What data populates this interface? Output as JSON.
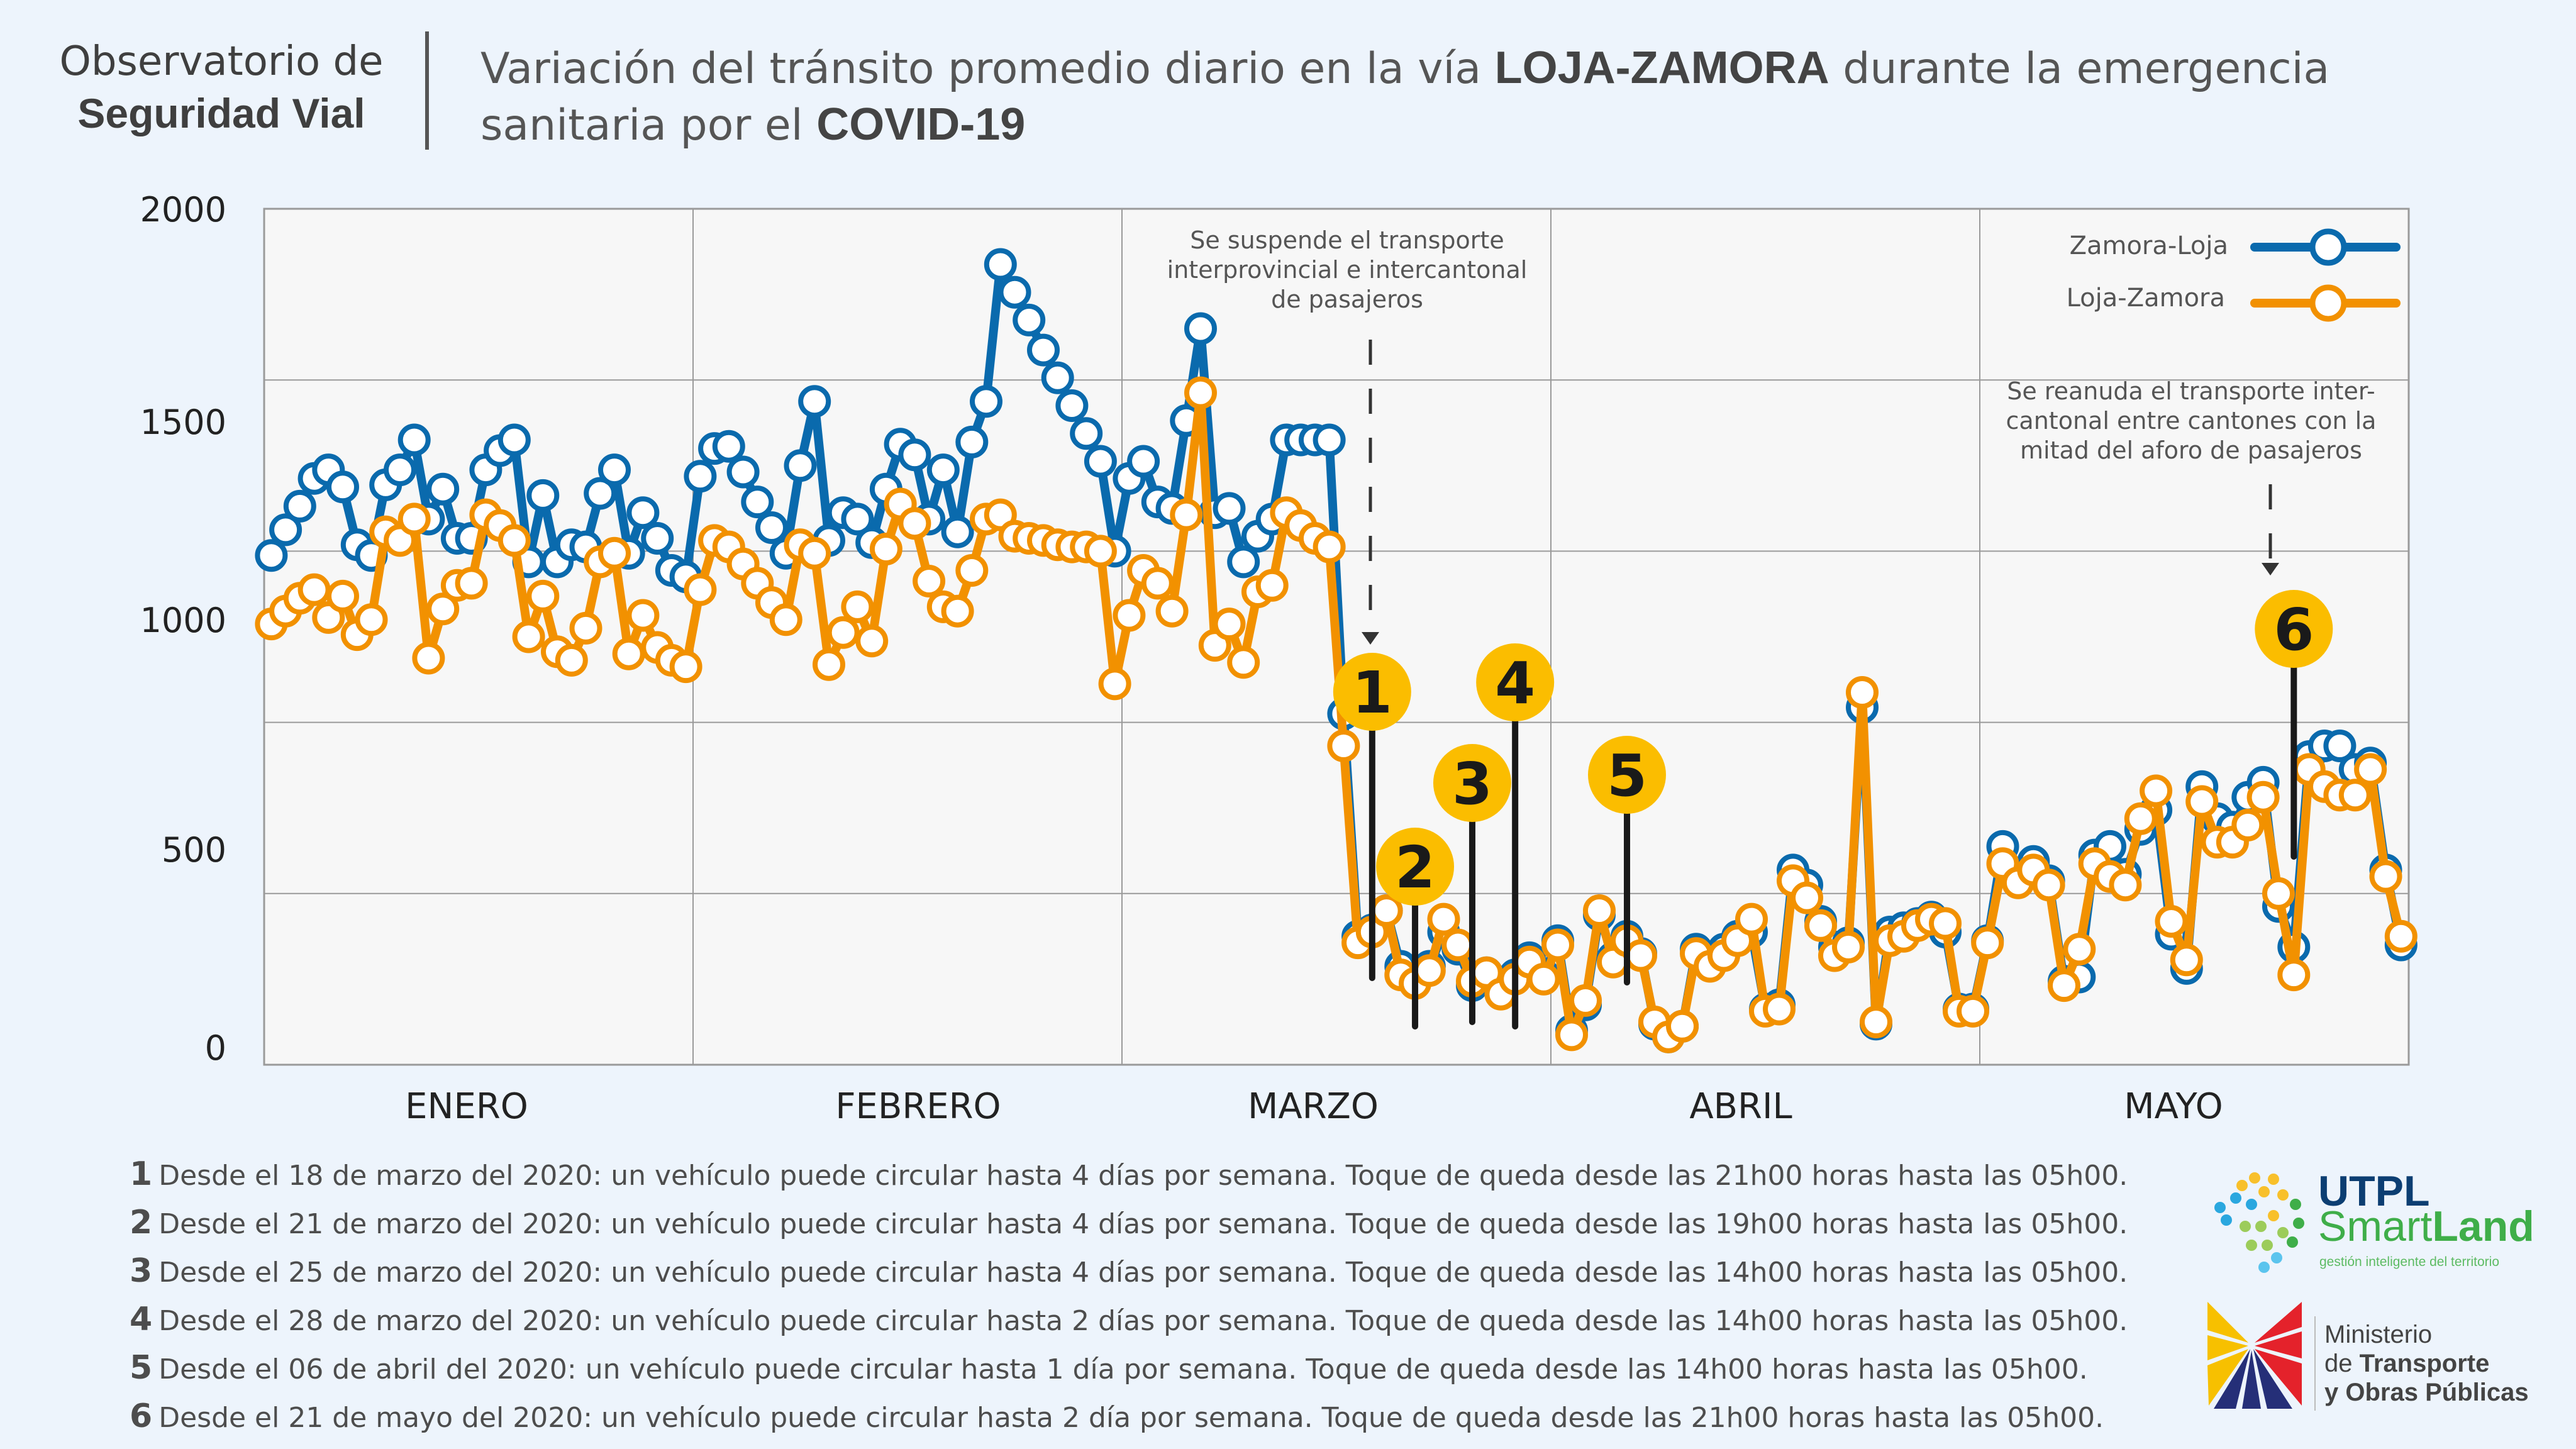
{
  "header": {
    "org_line1": "Observatorio de",
    "org_line2": "Seguridad Vial",
    "title_part1": "Variación del tránsito promedio diario en la vía ",
    "title_bold1": "LOJA-ZAMORA",
    "title_part2": " durante la emergencia sanitaria por el ",
    "title_bold2": "COVID-19"
  },
  "colors": {
    "zamora_loja": "#0a6aad",
    "loja_zamora": "#f29100",
    "badge": "#fbbd00",
    "background": "#edf4fc",
    "plot_bg": "#f7f7f7"
  },
  "annotations": {
    "suspension": [
      "Se suspende el transporte",
      "interprovincial e intercantonal",
      "de pasajeros"
    ],
    "resumption": [
      "Se reanuda el transporte inter-",
      "cantonal entre cantones con la",
      "mitad del aforo de pasajeros"
    ]
  },
  "chart_data": {
    "type": "line",
    "title": "Variación del tránsito promedio diario en la vía LOJA-ZAMORA durante la emergencia sanitaria por el COVID-19",
    "xlabel": "",
    "ylabel": "",
    "ylim": [
      0,
      2000
    ],
    "yticks": [
      "2000",
      "1500",
      "1000",
      "500",
      "0"
    ],
    "months": [
      "ENERO",
      "FEBRERO",
      "MARZO",
      "ABRIL",
      "MAYO"
    ],
    "grid": true,
    "legend_position": "top-right",
    "legend": [
      "Zamora-Loja",
      "Loja-Zamora"
    ],
    "series": [
      {
        "name": "Zamora-Loja",
        "values": {
          "ENERO": [
            1190,
            1250,
            1305,
            1370,
            1390,
            1350,
            1215,
            1190,
            1355,
            1390,
            1460,
            1275,
            1345,
            1230,
            1230,
            1390,
            1435,
            1460,
            1175,
            1330,
            1175,
            1215,
            1210,
            1335,
            1390,
            1195,
            1290,
            1230,
            1155,
            1140
          ],
          "FEBRERO": [
            1375,
            1440,
            1445,
            1385,
            1315,
            1255,
            1195,
            1400,
            1550,
            1225,
            1290,
            1275,
            1220,
            1345,
            1450,
            1425,
            1275,
            1390,
            1245,
            1455,
            1550,
            1870,
            1805,
            1740,
            1670,
            1605,
            1540,
            1475,
            1410,
            1200
          ],
          "MARZO": [
            1370,
            1410,
            1315,
            1300,
            1505,
            1720,
            1290,
            1300,
            1175,
            1235,
            1275,
            1460,
            1460,
            1460,
            1460,
            820,
            300,
            315,
            360,
            230,
            200,
            230,
            310,
            270,
            185,
            215,
            170,
            210,
            250,
            210
          ],
          "ABRIL": [
            290,
            80,
            140,
            350,
            250,
            300,
            260,
            95,
            65,
            90,
            270,
            245,
            270,
            300,
            310,
            130,
            140,
            455,
            420,
            335,
            275,
            285,
            835,
            95,
            310,
            320,
            330,
            345,
            310,
            130,
            130
          ],
          "MAYO": [
            290,
            510,
            445,
            475,
            430,
            195,
            205,
            490,
            510,
            445,
            550,
            595,
            305,
            225,
            650,
            575,
            555,
            625,
            660,
            370,
            275,
            720,
            745,
            745,
            690,
            705,
            455,
            280
          ]
        }
      },
      {
        "name": "Loja-Zamora",
        "values": {
          "ENERO": [
            1030,
            1060,
            1090,
            1110,
            1045,
            1095,
            1005,
            1040,
            1245,
            1225,
            1275,
            950,
            1065,
            1120,
            1125,
            1285,
            1260,
            1225,
            1000,
            1095,
            965,
            945,
            1020,
            1175,
            1195,
            960,
            1050,
            975,
            945,
            930
          ],
          "FEBRERO": [
            1110,
            1225,
            1210,
            1170,
            1125,
            1080,
            1040,
            1215,
            1195,
            935,
            1010,
            1070,
            990,
            1205,
            1310,
            1265,
            1130,
            1070,
            1060,
            1155,
            1275,
            1285,
            1235,
            1230,
            1225,
            1215,
            1210,
            1210,
            1200,
            890
          ],
          "MARZO": [
            1050,
            1155,
            1125,
            1060,
            1285,
            1570,
            980,
            1030,
            940,
            1105,
            1120,
            1290,
            1260,
            1230,
            1210,
            745,
            285,
            310,
            360,
            210,
            190,
            220,
            340,
            280,
            195,
            215,
            165,
            200,
            240,
            200
          ],
          "ABRIL": [
            280,
            70,
            150,
            360,
            240,
            290,
            255,
            100,
            65,
            90,
            260,
            230,
            255,
            290,
            340,
            125,
            130,
            430,
            390,
            325,
            255,
            275,
            870,
            100,
            290,
            300,
            325,
            340,
            330,
            125,
            125
          ],
          "MAYO": [
            285,
            470,
            425,
            455,
            420,
            185,
            270,
            470,
            440,
            420,
            575,
            640,
            335,
            245,
            615,
            520,
            520,
            560,
            625,
            400,
            210,
            690,
            650,
            630,
            630,
            690,
            440,
            300
          ]
        }
      }
    ],
    "events": [
      {
        "label": "1",
        "date": "18 de marzo"
      },
      {
        "label": "2",
        "date": "21 de marzo"
      },
      {
        "label": "3",
        "date": "25 de marzo"
      },
      {
        "label": "4",
        "date": "28 de marzo"
      },
      {
        "label": "5",
        "date": "06 de abril"
      },
      {
        "label": "6",
        "date": "21 de mayo"
      }
    ]
  },
  "notes": [
    {
      "num": "1",
      "text": "Desde el 18 de marzo del 2020: un vehículo puede circular hasta 4 días por semana. Toque de queda desde las 21h00 horas hasta las 05h00."
    },
    {
      "num": "2",
      "text": "Desde el 21 de marzo del 2020: un vehículo puede circular hasta 4 días por semana. Toque de queda desde las 19h00 horas hasta las 05h00."
    },
    {
      "num": "3",
      "text": "Desde el 25 de marzo del 2020: un vehículo puede circular hasta 4 días por semana. Toque de queda desde las 14h00 horas hasta las 05h00."
    },
    {
      "num": "4",
      "text": "Desde el 28 de marzo del 2020: un vehículo puede circular hasta 2 días por semana. Toque de queda desde las 14h00 horas hasta las 05h00."
    },
    {
      "num": "5",
      "text": "Desde el 06 de abril del 2020: un vehículo puede circular hasta 1 día por semana. Toque de queda desde las 14h00 horas hasta las 05h00."
    },
    {
      "num": "6",
      "text": "Desde el 21 de mayo del 2020: un vehículo puede circular hasta 2 día por semana. Toque de queda desde las 21h00 horas hasta las 05h00."
    }
  ],
  "logos": {
    "utpl_line1": "UTPL",
    "utpl_line2a": "Smart",
    "utpl_line2b": "Land",
    "utpl_line3": "gestión inteligente del territorio",
    "mtop_line1": "Ministerio",
    "mtop_line2a": "de ",
    "mtop_line2b": "Transporte",
    "mtop_line3": "y Obras Públicas"
  }
}
